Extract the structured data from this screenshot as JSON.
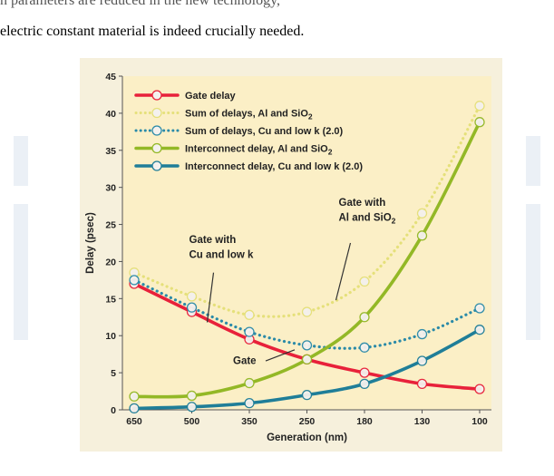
{
  "document": {
    "top_fragment": "n parameters are reduced in the new technology,",
    "line": "electric constant material is indeed crucially needed."
  },
  "chart_data": {
    "type": "line",
    "categories": [
      "650",
      "500",
      "350",
      "250",
      "180",
      "130",
      "100"
    ],
    "xlabel": "Generation (nm)",
    "ylabel": "Delay (psec)",
    "ylim": [
      0,
      45
    ],
    "yticks": [
      0,
      5,
      10,
      15,
      20,
      25,
      30,
      35,
      40,
      45
    ],
    "grid": false,
    "legend_position": "top-left",
    "series": [
      {
        "name": "Gate delay",
        "color": "#e8213a",
        "style": "solid",
        "values": [
          17,
          13.2,
          9.5,
          6.8,
          5.0,
          3.5,
          2.8
        ]
      },
      {
        "name": "Sum of delays, Al and SiO2",
        "color": "#e5e07a",
        "style": "dotted",
        "values": [
          18.5,
          15.3,
          12.8,
          13.2,
          17.3,
          26.5,
          41.0
        ]
      },
      {
        "name": "Sum of delays, Cu and low k (2.0)",
        "color": "#2a8aa8",
        "style": "dotted",
        "values": [
          17.5,
          13.8,
          10.5,
          8.7,
          8.4,
          10.2,
          13.7
        ]
      },
      {
        "name": "Interconnect delay, Al and SiO2",
        "color": "#93b826",
        "style": "solid",
        "values": [
          1.8,
          1.9,
          3.6,
          6.8,
          12.5,
          23.5,
          38.8
        ]
      },
      {
        "name": "Interconnect delay, Cu and low k (2.0)",
        "color": "#1f7e98",
        "style": "solid",
        "values": [
          0.2,
          0.4,
          0.9,
          2.0,
          3.5,
          6.6,
          10.8
        ]
      }
    ],
    "annotations": [
      {
        "lines": [
          "Gate with",
          "Al and SiO2"
        ],
        "x": "250",
        "y": 27
      },
      {
        "lines": [
          "Gate with",
          "Cu and low k"
        ],
        "x": "500",
        "y": 21
      },
      {
        "lines": [
          "Gate"
        ],
        "x": "350",
        "y": 7
      }
    ]
  }
}
